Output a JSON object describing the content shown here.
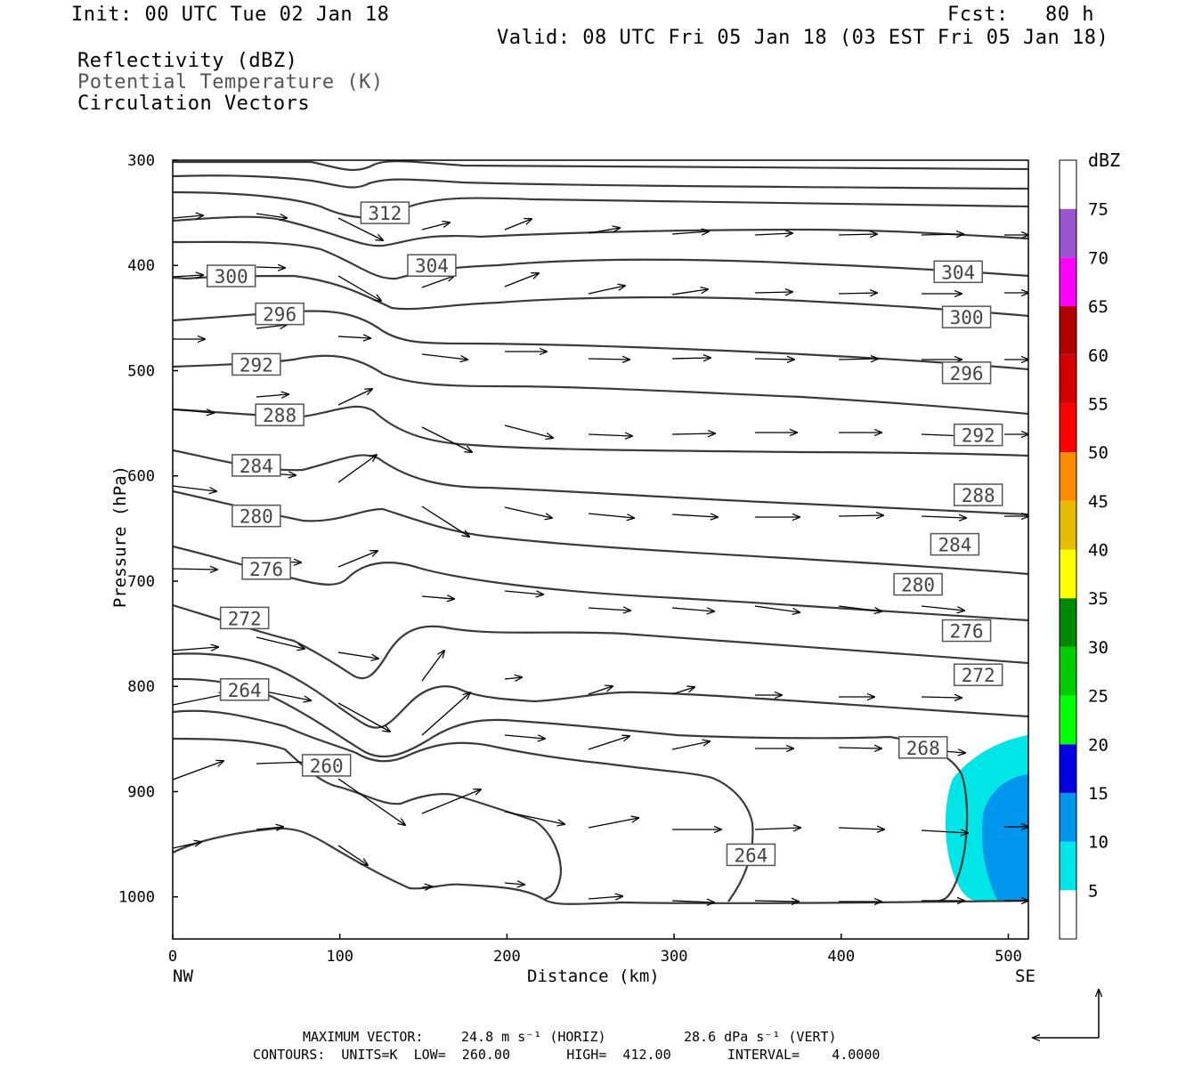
{
  "header": {
    "init": "Init: 00 UTC Tue 02 Jan 18",
    "fcst": "Fcst:   80 h",
    "valid": "Valid: 08 UTC Fri 05 Jan 18 (03 EST Fri 05 Jan 18)",
    "field1": "Reflectivity (dBZ)",
    "field2": "Potential Temperature (K)",
    "field3": "Circulation Vectors"
  },
  "colors": {
    "contour": "#3a3a3a",
    "refl_5": "#00e5e5",
    "refl_10": "#0096ee"
  },
  "chart_data": {
    "type": "contour",
    "xlabel": "Distance (km)",
    "ylabel": "Pressure (hPa)",
    "xlim": [
      0,
      512
    ],
    "ylim": [
      1040,
      300
    ],
    "x_ticks": [
      0,
      100,
      200,
      300,
      400,
      500
    ],
    "y_ticks": [
      300,
      400,
      500,
      600,
      700,
      800,
      900,
      1000
    ],
    "left_end_label": "NW",
    "right_end_label": "SE",
    "contour_labels": [
      {
        "v": "312",
        "x": 127,
        "p": 350
      },
      {
        "v": "304",
        "x": 155,
        "p": 400
      },
      {
        "v": "304",
        "x": 470,
        "p": 406
      },
      {
        "v": "300",
        "x": 35,
        "p": 410
      },
      {
        "v": "300",
        "x": 475,
        "p": 449
      },
      {
        "v": "296",
        "x": 64,
        "p": 446
      },
      {
        "v": "296",
        "x": 475,
        "p": 502
      },
      {
        "v": "292",
        "x": 50,
        "p": 494
      },
      {
        "v": "292",
        "x": 482,
        "p": 561
      },
      {
        "v": "288",
        "x": 64,
        "p": 542
      },
      {
        "v": "288",
        "x": 482,
        "p": 618
      },
      {
        "v": "284",
        "x": 50,
        "p": 590
      },
      {
        "v": "284",
        "x": 468,
        "p": 665
      },
      {
        "v": "280",
        "x": 50,
        "p": 638
      },
      {
        "v": "280",
        "x": 446,
        "p": 703
      },
      {
        "v": "276",
        "x": 56,
        "p": 688
      },
      {
        "v": "276",
        "x": 475,
        "p": 747
      },
      {
        "v": "272",
        "x": 43,
        "p": 735
      },
      {
        "v": "272",
        "x": 482,
        "p": 789
      },
      {
        "v": "268",
        "x": 449,
        "p": 858
      },
      {
        "v": "264",
        "x": 43,
        "p": 803
      },
      {
        "v": "264",
        "x": 346,
        "p": 960
      },
      {
        "v": "260",
        "x": 92,
        "p": 875
      }
    ],
    "colorbar": {
      "title": "dBZ",
      "levels": [
        "5",
        "10",
        "15",
        "20",
        "25",
        "30",
        "35",
        "40",
        "45",
        "50",
        "55",
        "60",
        "65",
        "70",
        "75"
      ],
      "colors": [
        "#ffffff",
        "#00e5e5",
        "#0096ee",
        "#0000e0",
        "#00ff00",
        "#00cc00",
        "#008800",
        "#ffff00",
        "#e6bc00",
        "#ff8c00",
        "#ff0000",
        "#d40000",
        "#b00000",
        "#ff00ff",
        "#9955cc",
        "#ffffff"
      ]
    }
  },
  "footer": {
    "max_vector_label": "MAXIMUM VECTOR:",
    "max_vector_horiz": "24.8 m s⁻¹ (HORIZ)",
    "max_vector_vert": "28.6 dPa s⁻¹ (VERT)",
    "contours_line": "CONTOURS:  UNITS=K  LOW=  260.00       HIGH=  412.00       INTERVAL=    4.0000"
  }
}
